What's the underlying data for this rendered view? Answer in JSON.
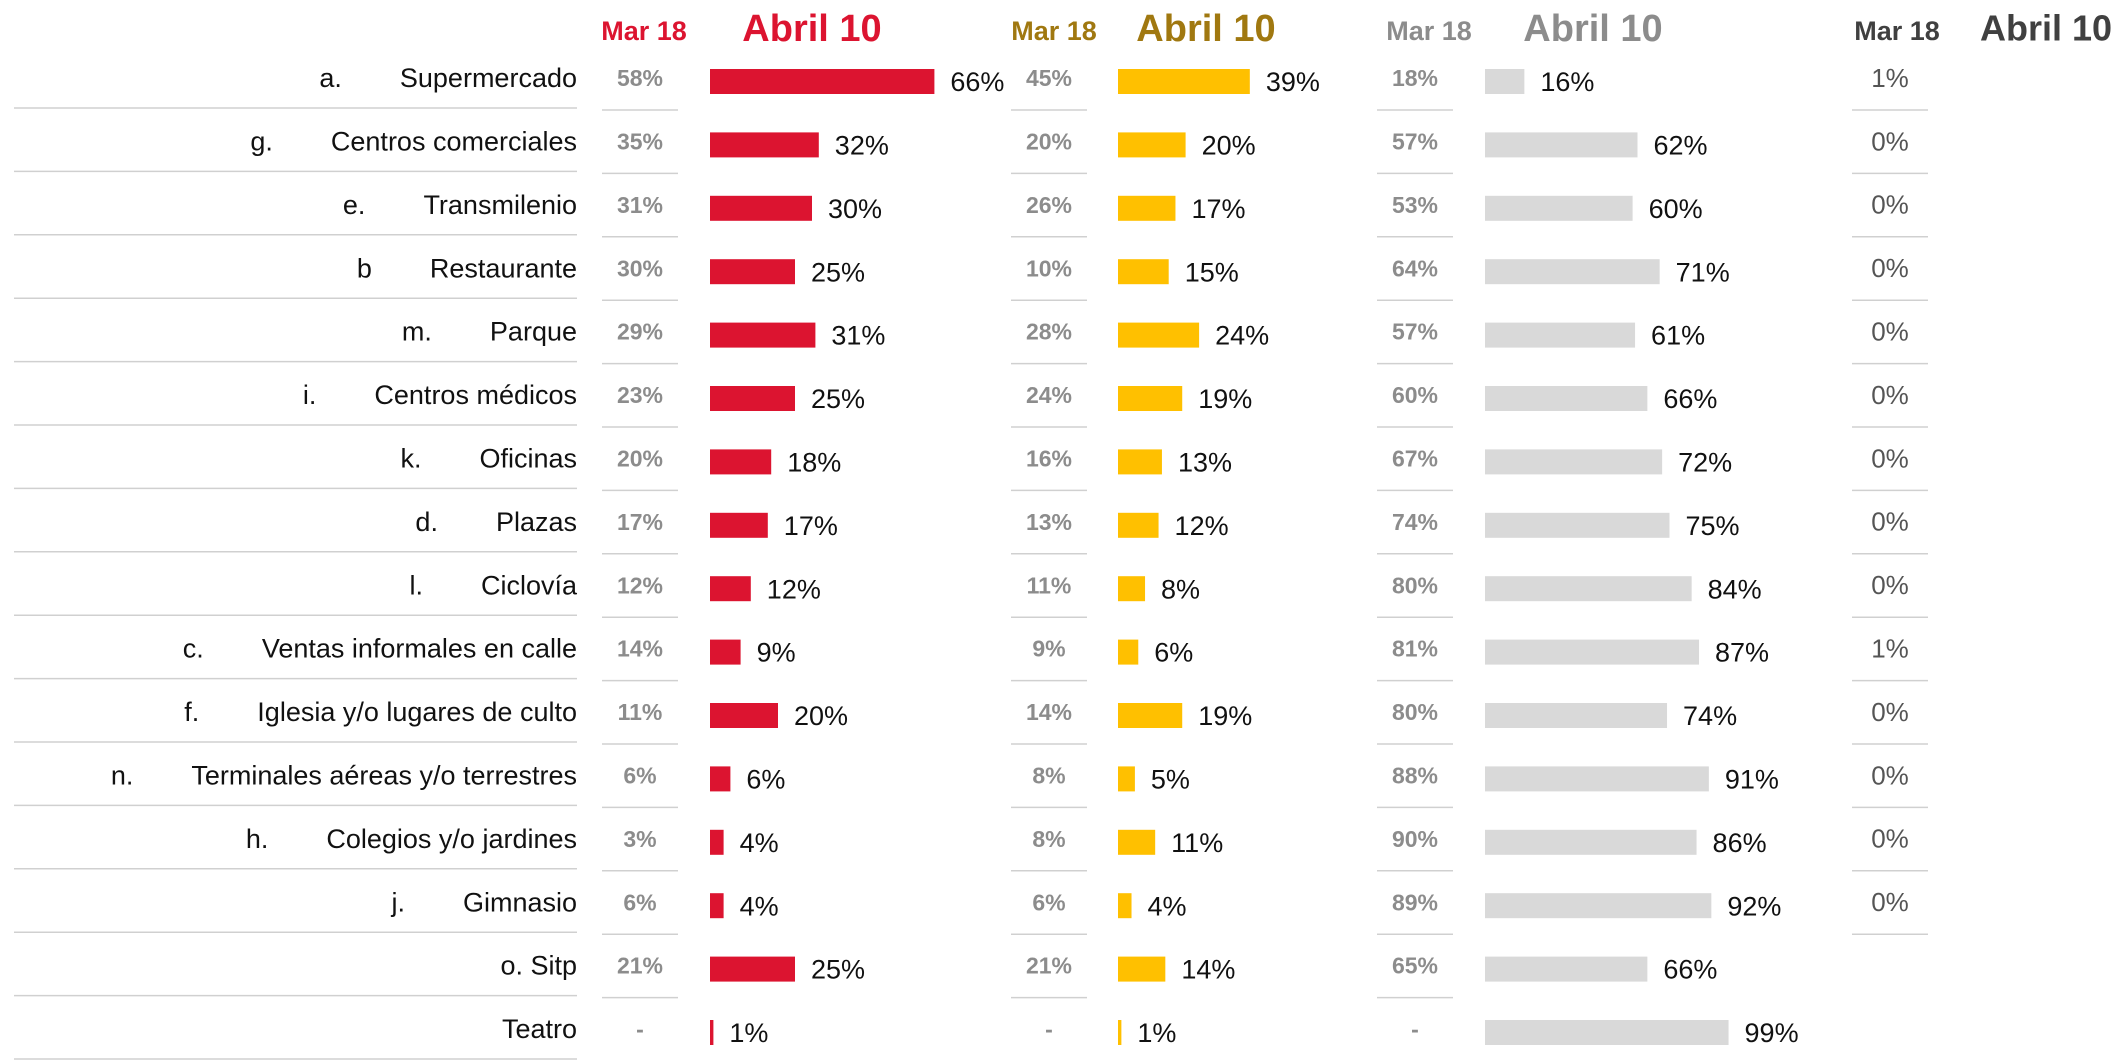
{
  "categories": [
    {
      "letter": "a.",
      "name": "Supermercado"
    },
    {
      "letter": "g.",
      "name": "Centros comerciales"
    },
    {
      "letter": "e.",
      "name": "Transmilenio"
    },
    {
      "letter": "b",
      "name": "Restaurante"
    },
    {
      "letter": "m.",
      "name": "Parque"
    },
    {
      "letter": "i.",
      "name": "Centros médicos"
    },
    {
      "letter": "k.",
      "name": "Oficinas"
    },
    {
      "letter": "d.",
      "name": "Plazas"
    },
    {
      "letter": "l.",
      "name": "Ciclovía"
    },
    {
      "letter": "c.",
      "name": "Ventas informales en calle"
    },
    {
      "letter": "f.",
      "name": "Iglesia y/o lugares de culto"
    },
    {
      "letter": "n.",
      "name": "Terminales aéreas y/o terrestres"
    },
    {
      "letter": "h.",
      "name": "Colegios y/o jardines"
    },
    {
      "letter": "j.",
      "name": "Gimnasio"
    },
    {
      "letter": null,
      "name": "o. Sitp"
    },
    {
      "letter": null,
      "name": "Teatro"
    }
  ],
  "chart_data": [
    {
      "type": "bar",
      "xlim": [
        0,
        100
      ],
      "series": [
        {
          "name": "Mar 18",
          "color": "#dc1430",
          "values": [
            58,
            35,
            31,
            30,
            29,
            23,
            20,
            17,
            12,
            14,
            11,
            6,
            3,
            6,
            21,
            null
          ],
          "value_labels": [
            "58%",
            "35%",
            "31%",
            "30%",
            "29%",
            "23%",
            "20%",
            "17%",
            "12%",
            "14%",
            "11%",
            "6%",
            "3%",
            "6%",
            "21%",
            "-"
          ]
        },
        {
          "name": "Abril 10",
          "color": "#dc1430",
          "values": [
            66,
            32,
            30,
            25,
            31,
            25,
            18,
            17,
            12,
            9,
            20,
            6,
            4,
            4,
            25,
            1
          ],
          "value_labels": [
            "66%",
            "32%",
            "30%",
            "25%",
            "31%",
            "25%",
            "18%",
            "17%",
            "12%",
            "9%",
            "20%",
            "6%",
            "4%",
            "4%",
            "25%",
            "1%"
          ]
        }
      ]
    },
    {
      "type": "bar",
      "xlim": [
        0,
        100
      ],
      "series": [
        {
          "name": "Mar 18",
          "color": "#a07810",
          "values": [
            45,
            20,
            26,
            10,
            28,
            24,
            16,
            13,
            11,
            9,
            14,
            8,
            8,
            6,
            21,
            null
          ],
          "value_labels": [
            "45%",
            "20%",
            "26%",
            "10%",
            "28%",
            "24%",
            "16%",
            "13%",
            "11%",
            "9%",
            "14%",
            "8%",
            "8%",
            "6%",
            "21%",
            "-"
          ]
        },
        {
          "name": "Abril 10",
          "color": "#ffc000",
          "values": [
            39,
            20,
            17,
            15,
            24,
            19,
            13,
            12,
            8,
            6,
            19,
            5,
            11,
            4,
            14,
            1
          ],
          "value_labels": [
            "39%",
            "20%",
            "17%",
            "15%",
            "24%",
            "19%",
            "13%",
            "12%",
            "8%",
            "6%",
            "19%",
            "5%",
            "11%",
            "4%",
            "14%",
            "1%"
          ]
        }
      ]
    },
    {
      "type": "bar",
      "xlim": [
        0,
        100
      ],
      "series": [
        {
          "name": "Mar 18",
          "color": "#8c8c8c",
          "values": [
            18,
            57,
            53,
            64,
            57,
            60,
            67,
            74,
            80,
            81,
            80,
            88,
            90,
            89,
            65,
            null
          ],
          "value_labels": [
            "18%",
            "57%",
            "53%",
            "64%",
            "57%",
            "60%",
            "67%",
            "74%",
            "80%",
            "81%",
            "80%",
            "88%",
            "90%",
            "89%",
            "65%",
            "-"
          ]
        },
        {
          "name": "Abril 10",
          "color": "#d9d9d9",
          "values": [
            16,
            62,
            60,
            71,
            61,
            66,
            72,
            75,
            84,
            87,
            74,
            91,
            86,
            92,
            66,
            99
          ],
          "value_labels": [
            "16%",
            "62%",
            "60%",
            "71%",
            "61%",
            "66%",
            "72%",
            "75%",
            "84%",
            "87%",
            "74%",
            "91%",
            "86%",
            "92%",
            "66%",
            "99%"
          ]
        }
      ]
    },
    {
      "type": "bar",
      "xlim": [
        0,
        100
      ],
      "series": [
        {
          "name": "Mar 18",
          "color": "#404040",
          "values": [
            1,
            0,
            0,
            0,
            0,
            0,
            0,
            0,
            0,
            1,
            0,
            0,
            0,
            0,
            null,
            null
          ],
          "value_labels": [
            "1%",
            "0%",
            "0%",
            "0%",
            "0%",
            "0%",
            "0%",
            "0%",
            "0%",
            "1%",
            "0%",
            "0%",
            "0%",
            "0%",
            null,
            null
          ]
        },
        {
          "name": "Abril 10",
          "color": "#404040",
          "values": [
            null,
            null,
            null,
            null,
            null,
            null,
            null,
            null,
            null,
            null,
            null,
            null,
            null,
            null,
            null,
            null
          ]
        }
      ]
    }
  ]
}
